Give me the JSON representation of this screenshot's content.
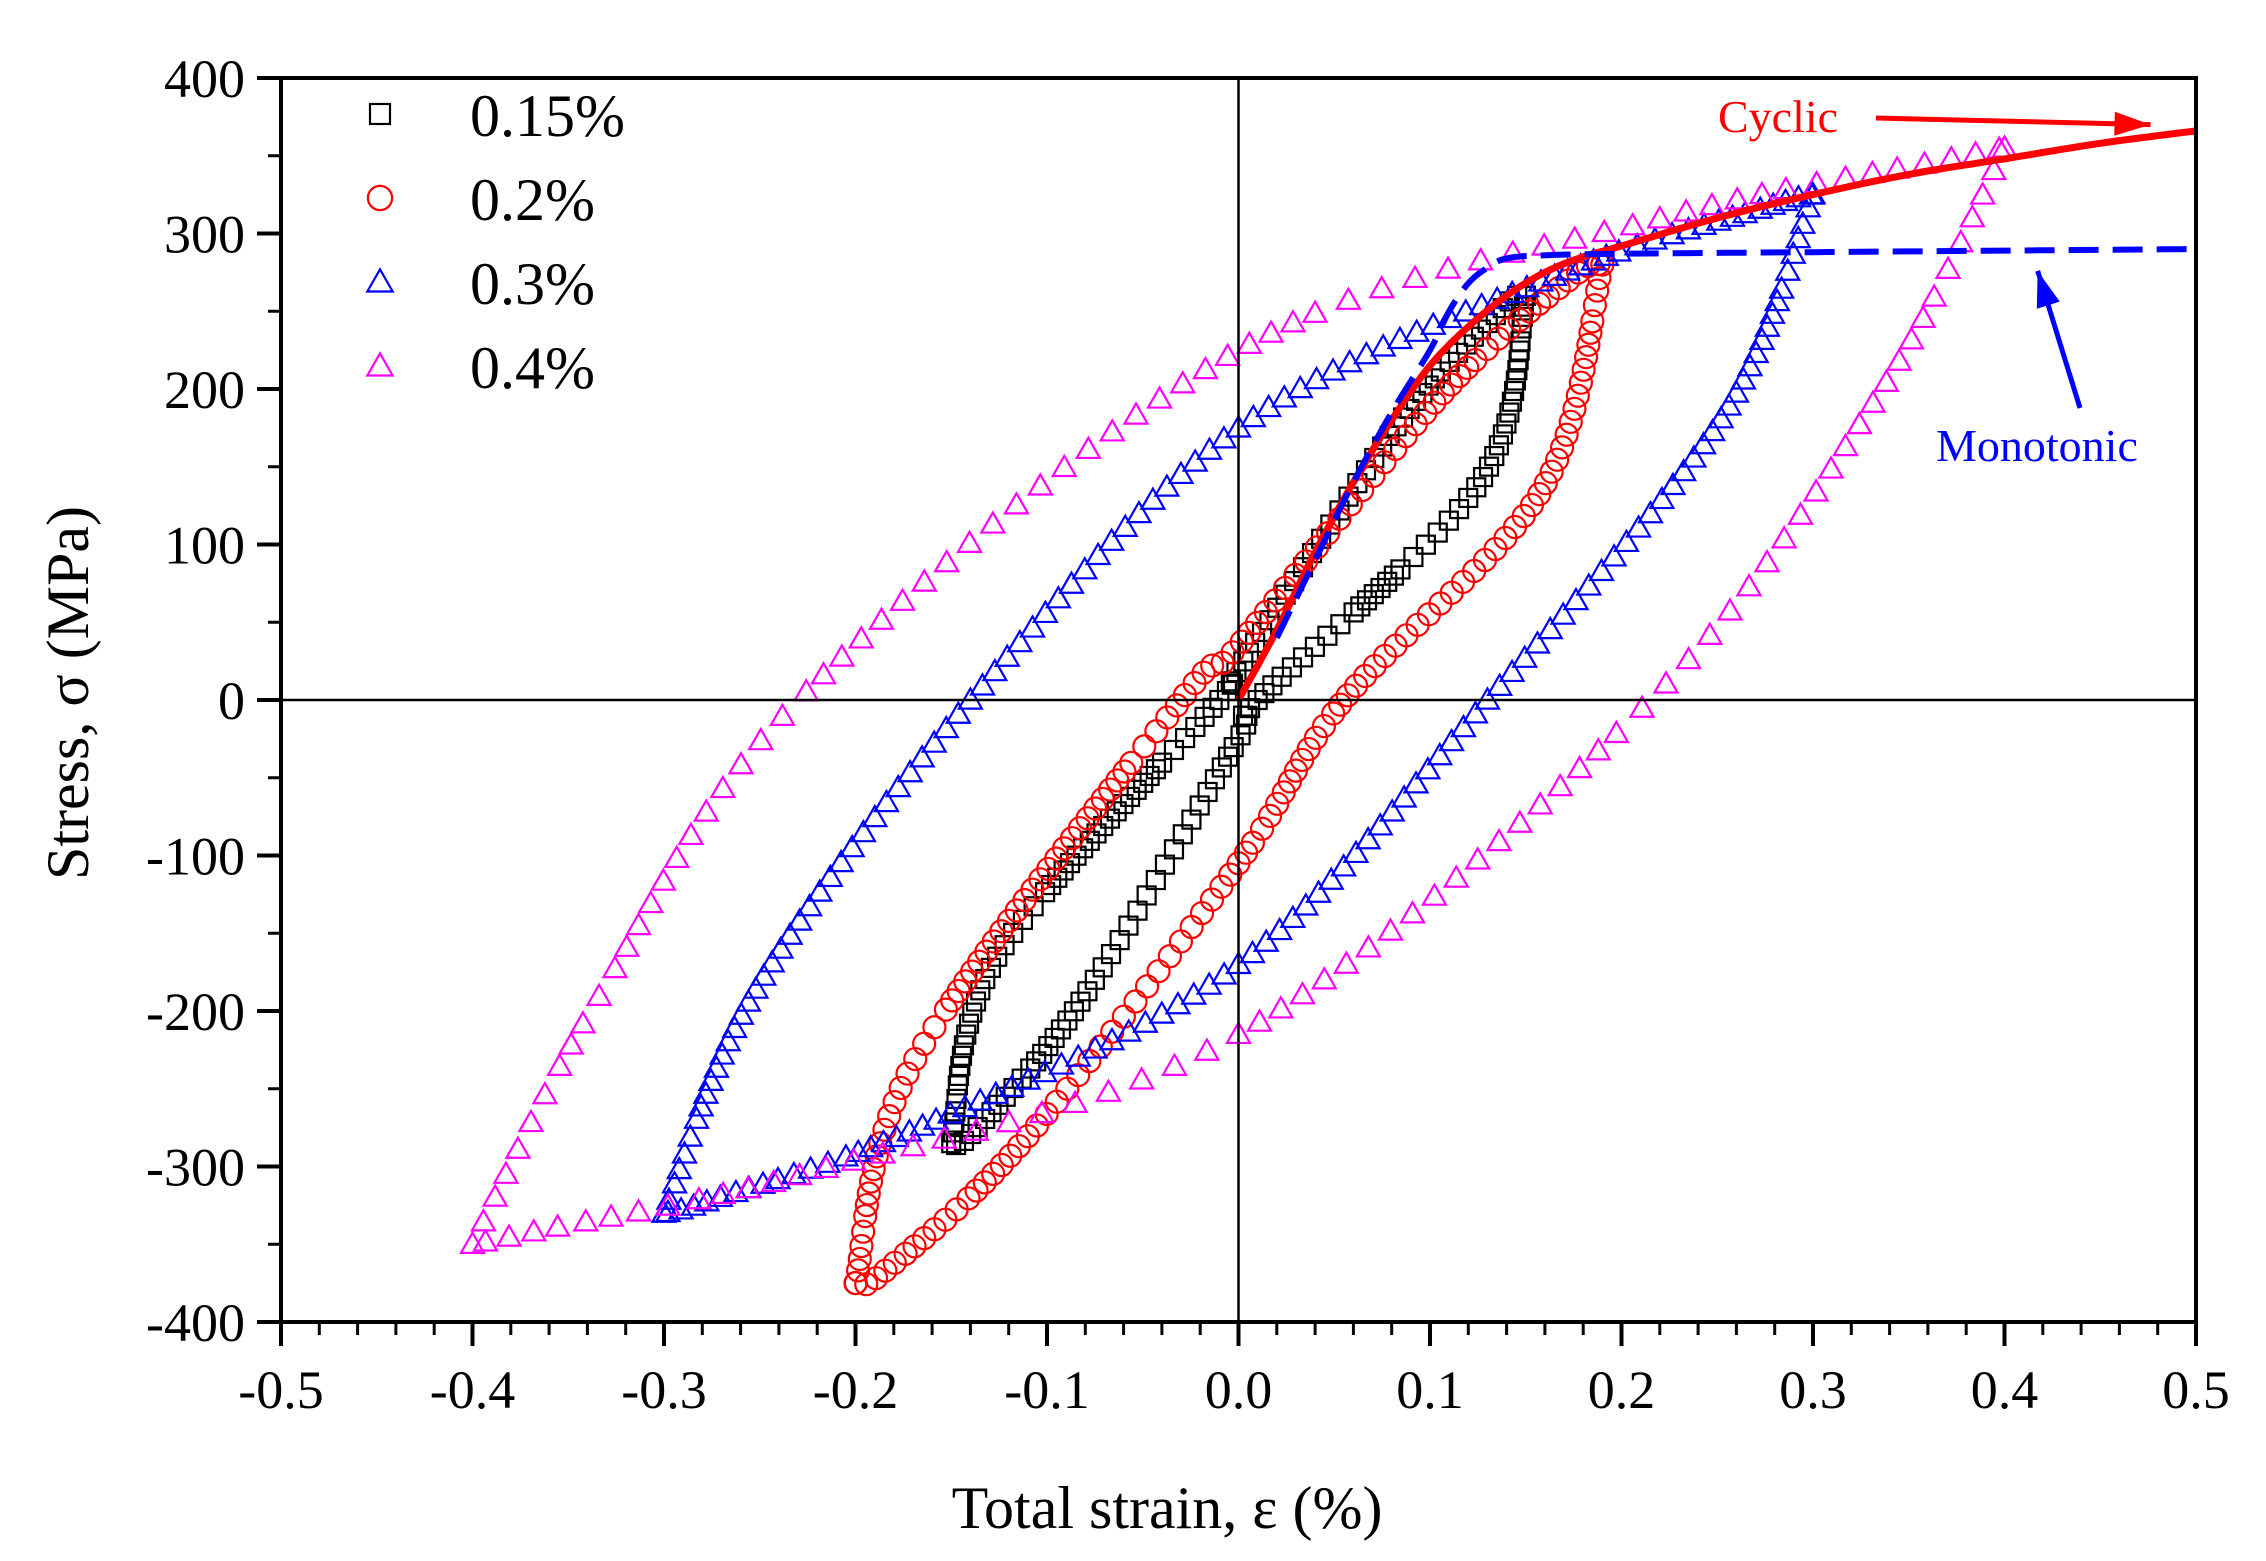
{
  "chart_data": {
    "type": "scatter",
    "title": "",
    "xlabel": "Total strain, ε (%)",
    "ylabel": "Stress, σ (MPa)",
    "xlim": [
      -0.5,
      0.5
    ],
    "ylim": [
      -400,
      400
    ],
    "x_ticks": [
      -0.5,
      -0.4,
      -0.3,
      -0.2,
      -0.1,
      0.0,
      0.1,
      0.2,
      0.3,
      0.4,
      0.5
    ],
    "x_tick_labels": [
      "-0.5",
      "-0.4",
      "-0.3",
      "-0.2",
      "-0.1",
      "0.0",
      "0.1",
      "0.2",
      "0.3",
      "0.4",
      "0.5"
    ],
    "y_ticks": [
      -400,
      -300,
      -200,
      -100,
      0,
      100,
      200,
      300,
      400
    ],
    "y_tick_labels": [
      "-400",
      "-300",
      "-200",
      "-100",
      "0",
      "100",
      "200",
      "300",
      "400"
    ],
    "grid": false,
    "zero_lines": true,
    "legend_position": "top-left",
    "series": [
      {
        "name": "0.15%",
        "marker": "square",
        "color": "#000000",
        "loop": {
          "max_strain": 0.15,
          "max_stress": 260,
          "min_strain": -0.15,
          "min_stress": -285,
          "zero_stress_strain_upper": -0.01,
          "zero_stress_strain_lower": 0.01,
          "zero_strain_stress_upper": 20,
          "zero_strain_stress_lower": -25
        }
      },
      {
        "name": "0.2%",
        "marker": "circle",
        "color": "#ff0000",
        "loop": {
          "max_strain": 0.19,
          "max_stress": 280,
          "min_strain": -0.2,
          "min_stress": -375,
          "zero_stress_strain_upper": -0.03,
          "zero_stress_strain_lower": 0.055,
          "zero_strain_stress_upper": 35,
          "zero_strain_stress_lower": -105
        }
      },
      {
        "name": "0.3%",
        "marker": "triangle",
        "color": "#0000ff",
        "loop": {
          "max_strain": 0.3,
          "max_stress": 325,
          "min_strain": -0.3,
          "min_stress": -330,
          "zero_stress_strain_upper": -0.14,
          "zero_stress_strain_lower": 0.13,
          "zero_strain_stress_upper": 175,
          "zero_strain_stress_lower": -170
        }
      },
      {
        "name": "0.4%",
        "marker": "triangle",
        "color": "#ff00ff",
        "loop": {
          "max_strain": 0.4,
          "max_stress": 355,
          "min_strain": -0.4,
          "min_stress": -350,
          "zero_stress_strain_upper": -0.23,
          "zero_stress_strain_lower": 0.215,
          "zero_strain_stress_upper": 225,
          "zero_strain_stress_lower": -215
        }
      }
    ],
    "curves": [
      {
        "name": "Cyclic",
        "style": "solid",
        "color": "#ff0000",
        "x": [
          0,
          0.02,
          0.04,
          0.06,
          0.08,
          0.1,
          0.12,
          0.14,
          0.16,
          0.18,
          0.2,
          0.25,
          0.3,
          0.35,
          0.4,
          0.45,
          0.5
        ],
        "y": [
          0,
          45,
          95,
          140,
          180,
          215,
          240,
          260,
          275,
          285,
          292,
          310,
          325,
          338,
          348,
          358,
          366
        ]
      },
      {
        "name": "Monotonic",
        "style": "dashed",
        "color": "#0000ff",
        "x": [
          0.02,
          0.04,
          0.06,
          0.08,
          0.1,
          0.11,
          0.12,
          0.13,
          0.14,
          0.16,
          0.2,
          0.3,
          0.4,
          0.5
        ],
        "y": [
          40,
          90,
          140,
          185,
          225,
          250,
          268,
          278,
          284,
          286,
          287,
          288,
          289,
          290
        ]
      }
    ],
    "annotations": [
      {
        "text": "Cyclic",
        "color": "#ff0000",
        "points_to": [
          0.47,
          370
        ]
      },
      {
        "text": "Monotonic",
        "color": "#0000ff",
        "points_to": [
          0.41,
          285
        ]
      }
    ]
  }
}
